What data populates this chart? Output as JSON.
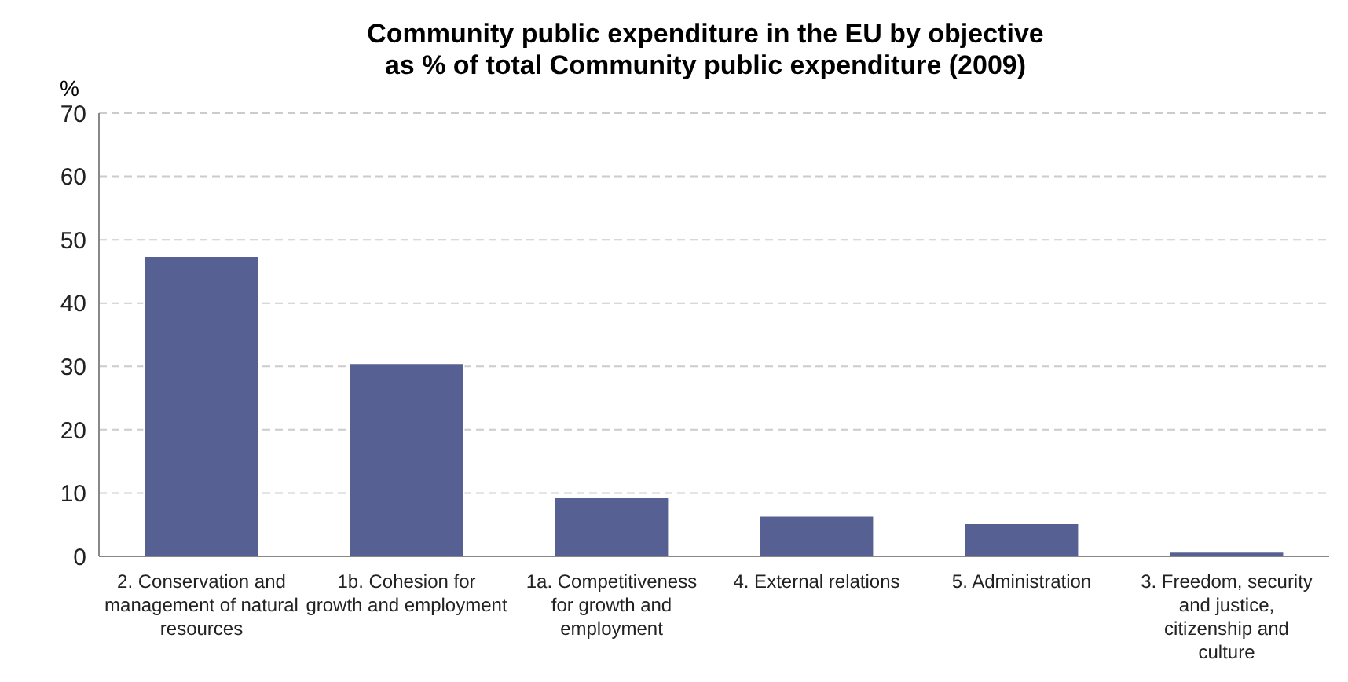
{
  "chart_data": {
    "type": "bar",
    "title": "Community public expenditure in the EU by objective",
    "subtitle": "as % of total Community public expenditure (2009)",
    "ylabel": "%",
    "categories": [
      "2. Conservation and management of natural resources",
      "1b. Cohesion for growth and employment",
      "1a. Competitiveness for growth and employment",
      "4. External relations",
      "5. Administration",
      "3. Freedom, security and justice, citizenship and culture"
    ],
    "values": [
      47.4,
      30.5,
      9.3,
      6.4,
      5.2,
      0.7
    ],
    "color": "#576092",
    "ylim": [
      0,
      70
    ],
    "yticks": [
      0,
      10,
      20,
      30,
      40,
      50,
      60,
      70
    ],
    "grid": "y",
    "legend": false
  }
}
